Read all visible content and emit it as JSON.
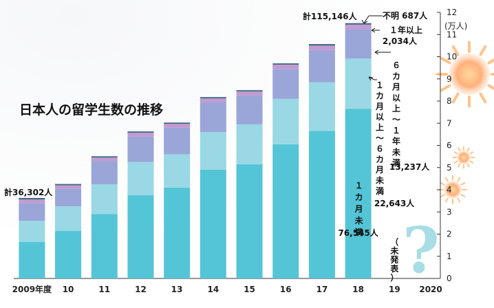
{
  "chart_data": {
    "type": "bar",
    "stacked": true,
    "title": "日本人の留学生数の推移",
    "categories": [
      "2009年度",
      "10",
      "11",
      "12",
      "13",
      "14",
      "15",
      "16",
      "17",
      "18",
      "19",
      "2020"
    ],
    "series": [
      {
        "name": "１カ月未満",
        "color": "#54c5d6",
        "values": [
          16500,
          21500,
          29000,
          37500,
          41000,
          49000,
          51500,
          60500,
          66500,
          76545,
          null,
          null
        ]
      },
      {
        "name": "１カ月以上～６カ月未満",
        "color": "#99d8e4",
        "values": [
          9500,
          11000,
          13500,
          15000,
          15000,
          17000,
          18000,
          20500,
          22000,
          22643,
          null,
          null
        ]
      },
      {
        "name": "６カ月以上～１年未満",
        "color": "#9aa5d8",
        "values": [
          8000,
          8000,
          10500,
          11500,
          12000,
          13500,
          13000,
          13500,
          14500,
          13237,
          null,
          null
        ]
      },
      {
        "name": "１年以上",
        "color": "#c49ad0",
        "values": [
          1600,
          1500,
          1500,
          1700,
          1700,
          1700,
          1800,
          1900,
          2000,
          2034,
          null,
          null
        ]
      },
      {
        "name": "不明",
        "color": "#3d6a86",
        "values": [
          700,
          600,
          600,
          600,
          600,
          600,
          600,
          600,
          700,
          687,
          null,
          null
        ]
      }
    ],
    "totals_labeled": {
      "2009年度": "計36,302人",
      "18": "計115,146人"
    },
    "y_axis": {
      "label": "(万人)",
      "ticks": [
        0,
        1,
        2,
        3,
        4,
        5,
        6,
        7,
        8,
        9,
        10,
        11,
        12
      ],
      "unit_value": 10000,
      "ylim": [
        0,
        120000
      ],
      "position": "right"
    },
    "annotations": {
      "unknown": "不明 687人",
      "over1y_name": "１年以上",
      "over1y_value": "2,034人",
      "m6_name": "６カ月以上～１年未満",
      "m6_value": "13,237人",
      "m1_name": "１カ月以上～６カ月未満",
      "m1_value": "22,643人",
      "lt1m_name": "１カ月未満",
      "lt1m_value": "76,545人",
      "not_published": "（未発表）"
    },
    "decor": {
      "question_mark": "?"
    }
  }
}
